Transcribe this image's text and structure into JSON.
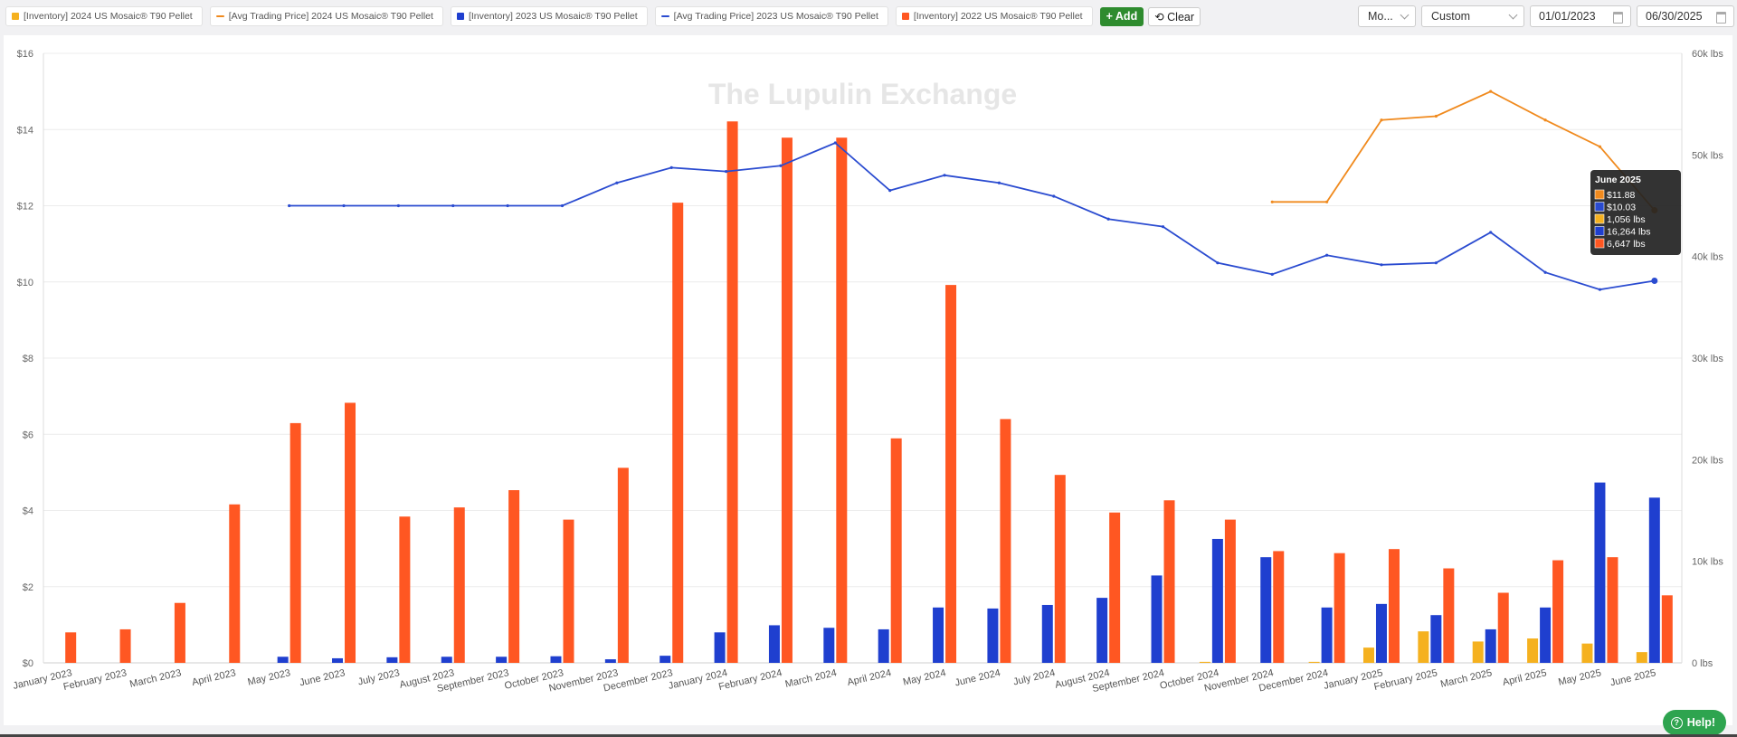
{
  "legend": [
    {
      "label": "[Inventory] 2024 US Mosaic® T90 Pellet",
      "color": "#f5b11f",
      "kind": "box"
    },
    {
      "label": "[Avg Trading Price] 2024 US Mosaic® T90 Pellet",
      "color": "#f08a1e",
      "kind": "line"
    },
    {
      "label": "[Inventory] 2023 US Mosaic® T90 Pellet",
      "color": "#1f3fcf",
      "kind": "box"
    },
    {
      "label": "[Avg Trading Price] 2023 US Mosaic® T90 Pellet",
      "color": "#2a4bd0",
      "kind": "line"
    },
    {
      "label": "[Inventory] 2022 US Mosaic® T90 Pellet",
      "color": "#ff5722",
      "kind": "box"
    }
  ],
  "buttons": {
    "add": "+ Add",
    "clear": "⟲ Clear",
    "help": "Help!"
  },
  "controls": {
    "mode": "Mo...",
    "range": "Custom",
    "start": "01/01/2023",
    "end": "06/30/2025"
  },
  "watermark": "The Lupulin Exchange",
  "chart_data": {
    "type": "bar",
    "categories": [
      "January 2023",
      "February 2023",
      "March 2023",
      "April 2023",
      "May 2023",
      "June 2023",
      "July 2023",
      "August 2023",
      "September 2023",
      "October 2023",
      "November 2023",
      "December 2023",
      "January 2024",
      "February 2024",
      "March 2024",
      "April 2024",
      "May 2024",
      "June 2024",
      "July 2024",
      "August 2024",
      "September 2024",
      "October 2024",
      "November 2024",
      "December 2024",
      "January 2025",
      "February 2025",
      "March 2025",
      "April 2025",
      "May 2025",
      "June 2025"
    ],
    "y_left": {
      "ticks": [
        "$0",
        "$2",
        "$4",
        "$6",
        "$8",
        "$10",
        "$12",
        "$14",
        "$16"
      ],
      "min": 0,
      "max": 16
    },
    "y_right": {
      "ticks": [
        "0 lbs",
        "10k lbs",
        "20k lbs",
        "30k lbs",
        "40k lbs",
        "50k lbs",
        "60k lbs"
      ],
      "min": 0,
      "max": 60000
    },
    "grid": true,
    "series": [
      {
        "name": "[Inventory] 2024 US Mosaic® T90 Pellet",
        "type": "bar",
        "axis": "right",
        "color": "#f5b11f",
        "values": [
          null,
          null,
          null,
          null,
          null,
          null,
          null,
          null,
          null,
          null,
          null,
          null,
          null,
          null,
          null,
          null,
          null,
          null,
          null,
          null,
          null,
          100,
          null,
          100,
          1500,
          3100,
          2100,
          2400,
          1900,
          1056
        ]
      },
      {
        "name": "[Inventory] 2023 US Mosaic® T90 Pellet",
        "type": "bar",
        "axis": "right",
        "color": "#1f3fcf",
        "values": [
          null,
          null,
          null,
          null,
          600,
          450,
          550,
          600,
          600,
          650,
          350,
          700,
          3000,
          3700,
          3450,
          3300,
          5450,
          5350,
          5700,
          6400,
          8600,
          12200,
          10400,
          5450,
          5800,
          4700,
          3300,
          5450,
          17750,
          16264
        ]
      },
      {
        "name": "[Inventory] 2022 US Mosaic® T90 Pellet",
        "type": "bar",
        "axis": "right",
        "color": "#ff5722",
        "values": [
          3000,
          3300,
          5900,
          15600,
          23600,
          25600,
          14400,
          15300,
          17000,
          14100,
          19200,
          45300,
          53300,
          51700,
          51700,
          22100,
          37200,
          24000,
          18500,
          14800,
          16000,
          14100,
          11000,
          10800,
          11200,
          9300,
          6900,
          10100,
          10400,
          6647
        ]
      },
      {
        "name": "[Avg Trading Price] 2024 US Mosaic® T90 Pellet",
        "type": "line",
        "axis": "left",
        "color": "#f08a1e",
        "values": [
          null,
          null,
          null,
          null,
          null,
          null,
          null,
          null,
          null,
          null,
          null,
          null,
          null,
          null,
          null,
          null,
          null,
          null,
          null,
          null,
          null,
          null,
          12.1,
          12.1,
          14.25,
          14.35,
          15.0,
          14.25,
          13.55,
          11.88
        ]
      },
      {
        "name": "[Avg Trading Price] 2023 US Mosaic® T90 Pellet",
        "type": "line",
        "axis": "left",
        "color": "#2a4bd0",
        "values": [
          null,
          null,
          null,
          null,
          12.0,
          12.0,
          12.0,
          12.0,
          12.0,
          12.0,
          12.6,
          13.0,
          12.9,
          13.05,
          13.65,
          12.4,
          12.8,
          12.6,
          12.25,
          11.65,
          11.45,
          10.5,
          10.2,
          10.7,
          10.45,
          10.5,
          11.3,
          10.25,
          9.8,
          10.03
        ]
      }
    ],
    "tooltip": {
      "title": "June 2025",
      "rows": [
        {
          "text": "$11.88",
          "color": "#f08a1e"
        },
        {
          "text": "$10.03",
          "color": "#2a4bd0"
        },
        {
          "text": "1,056 lbs",
          "color": "#f5b11f"
        },
        {
          "text": "16,264 lbs",
          "color": "#1f3fcf"
        },
        {
          "text": "6,647 lbs",
          "color": "#ff5722"
        }
      ]
    }
  }
}
